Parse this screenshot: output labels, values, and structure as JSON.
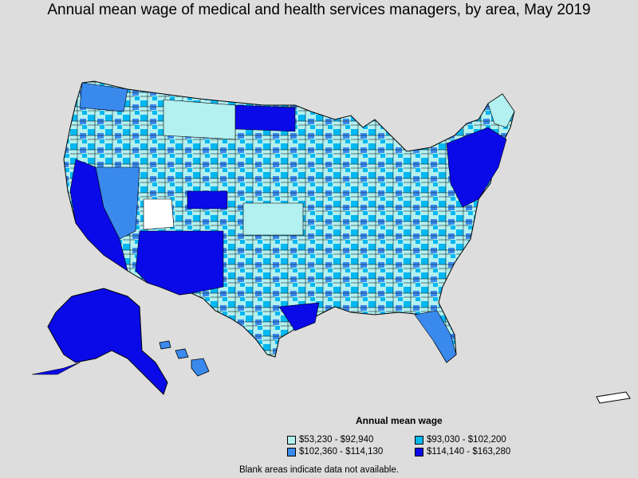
{
  "title": "Annual mean wage of medical and health services managers, by area, May 2019",
  "legend": {
    "title": "Annual mean wage",
    "items": [
      {
        "label": "$53,230 - $92,940",
        "color": "#b3f0f0"
      },
      {
        "label": "$93,030 - $102,200",
        "color": "#00b8f2"
      },
      {
        "label": "$102,360 - $114,130",
        "color": "#3a8aee"
      },
      {
        "label": "$114,140 - $163,280",
        "color": "#0a0ae8"
      }
    ]
  },
  "note": "Blank areas indicate data not available."
}
